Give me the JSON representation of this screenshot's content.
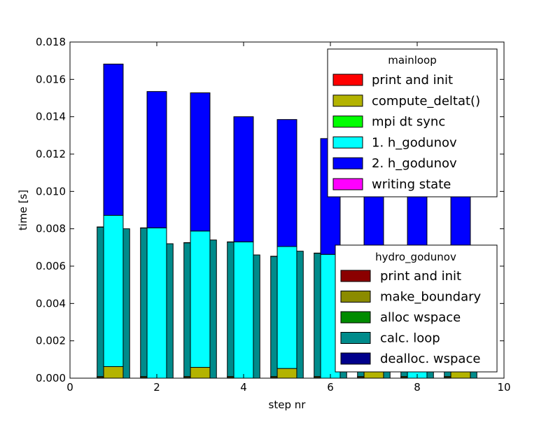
{
  "chart_data": {
    "type": "bar",
    "xlabel": "step nr",
    "ylabel": "time [s]",
    "xlim": [
      0,
      10
    ],
    "ylim": [
      0,
      0.018
    ],
    "xticks": [
      "0",
      "2",
      "4",
      "6",
      "8",
      "10"
    ],
    "yticks": [
      "0.000",
      "0.002",
      "0.004",
      "0.006",
      "0.008",
      "0.010",
      "0.012",
      "0.014",
      "0.016",
      "0.018"
    ],
    "mainloop": {
      "legend_title": "mainloop",
      "legend_position": "upper-right",
      "categories": [
        1,
        2,
        3,
        4,
        5,
        6,
        7,
        8,
        9
      ],
      "series": [
        {
          "name": "print and init",
          "color": "#ff0000",
          "values": [
            0,
            0,
            0,
            0,
            0,
            0,
            0,
            0,
            0
          ]
        },
        {
          "name": "compute_deltat()",
          "color": "#b3b300",
          "values": [
            0.00062,
            0,
            0.00058,
            0,
            0.00052,
            0,
            0.00048,
            0,
            0.00042
          ]
        },
        {
          "name": "mpi dt sync",
          "color": "#00ff00",
          "values": [
            0,
            0,
            0,
            0,
            0,
            0,
            0,
            0,
            0
          ]
        },
        {
          "name": "1. h_godunov",
          "color": "#00ffff",
          "values": [
            0.0081,
            0.00805,
            0.0073,
            0.0073,
            0.00653,
            0.00663,
            0.0058,
            0.0061,
            0.0053
          ]
        },
        {
          "name": "2. h_godunov",
          "color": "#0000ff",
          "values": [
            0.0081,
            0.0073,
            0.0074,
            0.0067,
            0.0068,
            0.0062,
            0.0061,
            0.0056,
            0.0058
          ]
        },
        {
          "name": "writing state",
          "color": "#ff00ff",
          "values": [
            0,
            0,
            0,
            0,
            0,
            0,
            0,
            0,
            0
          ]
        }
      ]
    },
    "hydro_godunov": {
      "legend_title": "hydro_godunov",
      "legend_position": "lower-right",
      "series": [
        {
          "name": "print and init",
          "color": "#8b0000",
          "values": [
            2e-05,
            0,
            2e-05,
            0,
            2e-05,
            0,
            2e-05,
            0,
            2e-05,
            0,
            2e-05,
            0,
            2e-05,
            0,
            2e-05,
            0,
            2e-05,
            0
          ]
        },
        {
          "name": "make_boundary",
          "color": "#8b8b00",
          "values": [
            6e-05,
            0,
            6e-05,
            0,
            6e-05,
            0,
            6e-05,
            0,
            6e-05,
            0,
            6e-05,
            0,
            6e-05,
            0,
            6e-05,
            0,
            6e-05,
            0
          ]
        },
        {
          "name": "alloc wspace",
          "color": "#008b00",
          "values": [
            1e-05,
            0,
            1e-05,
            0,
            1e-05,
            0,
            1e-05,
            0,
            1e-05,
            0,
            1e-05,
            0,
            1e-05,
            0,
            1e-05,
            0,
            1e-05,
            0
          ]
        },
        {
          "name": "calc. loop",
          "color": "#008b8b",
          "values": [
            0.008,
            0.008,
            0.00795,
            0.0072,
            0.00716,
            0.0074,
            0.0072,
            0.0066,
            0.00643,
            0.0068,
            0.0066,
            0.0062,
            0.0057,
            0.0061,
            0.006,
            0.0056,
            0.0052,
            0.0058
          ]
        },
        {
          "name": "dealloc. wspace",
          "color": "#00008b",
          "values": [
            1e-05,
            0,
            1e-05,
            0,
            1e-05,
            0,
            1e-05,
            0,
            1e-05,
            0,
            1e-05,
            0,
            1e-05,
            0,
            1e-05,
            0,
            1e-05,
            0
          ]
        }
      ]
    }
  }
}
